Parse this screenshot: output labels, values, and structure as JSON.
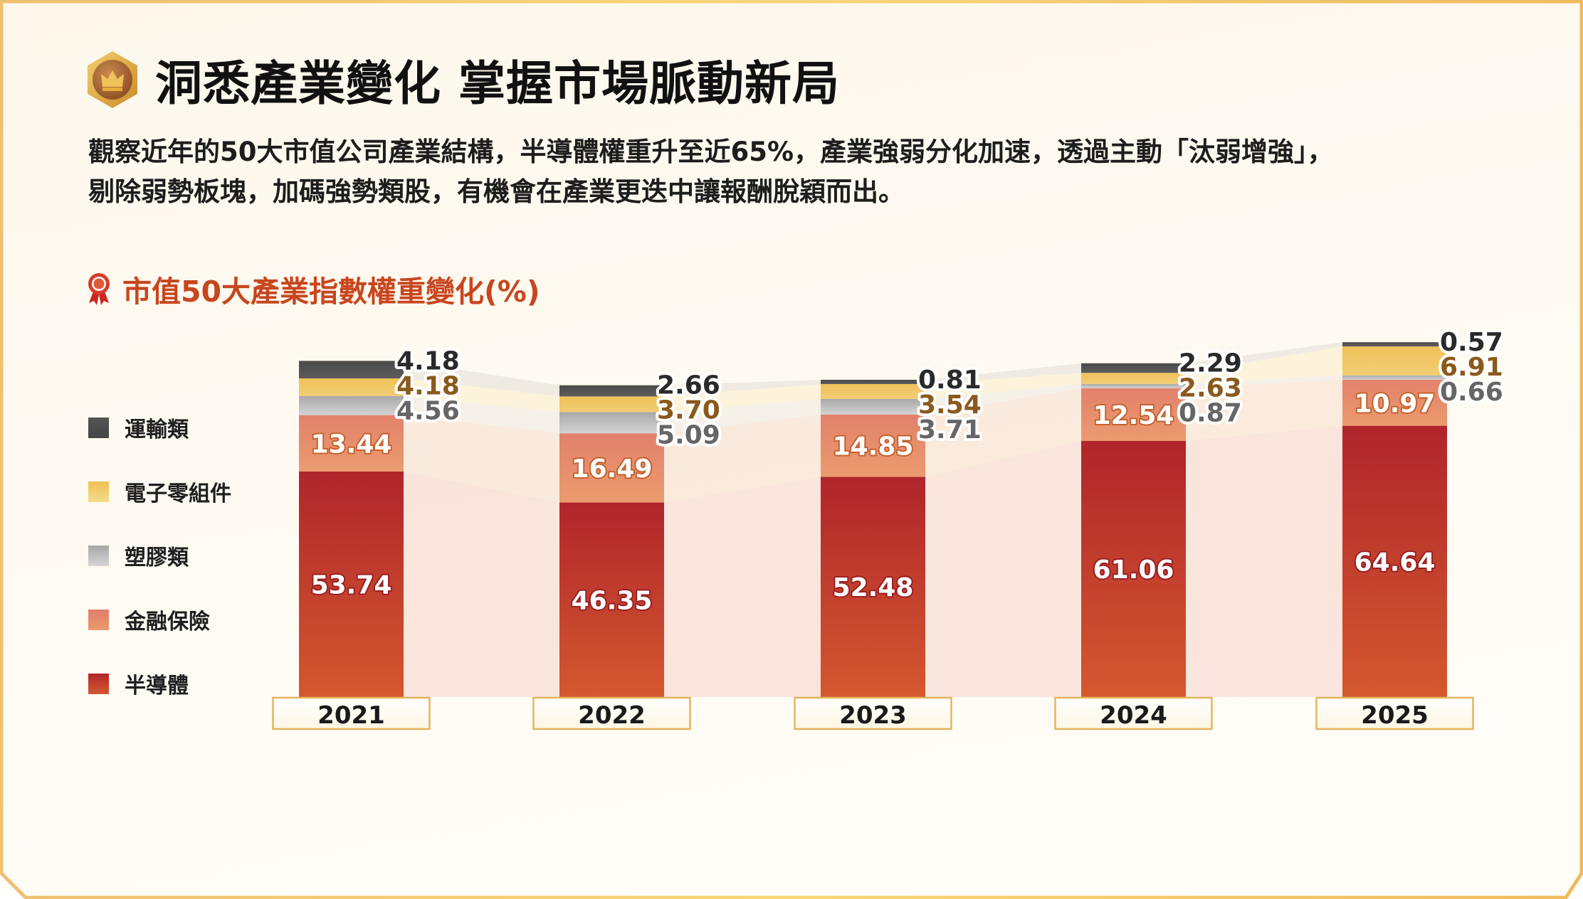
{
  "header": {
    "title": "洞悉產業變化  掌握市場脈動新局",
    "badge_icon": "crown-badge-icon"
  },
  "description": {
    "line1": "觀察近年的50大市值公司產業結構，半導體權重升至近65%，產業強弱分化加速，透過主動「汰弱增強」，",
    "line2": "剔除弱勢板塊，加碼強勢類股，有機會在產業更迭中讓報酬脫穎而出。"
  },
  "chart_section": {
    "title": "市值50大產業指數權重變化(%)",
    "title_icon": "award-ribbon-icon",
    "title_color": "#c8461e"
  },
  "legend": [
    {
      "label": "運輸類",
      "color": "#4d4d4d"
    },
    {
      "label": "電子零組件",
      "color": "#efc35e"
    },
    {
      "label": "塑膠類",
      "color": "#b3b3b3"
    },
    {
      "label": "金融保險",
      "color": "#e58a6e"
    },
    {
      "label": "半導體",
      "color": "#b5282a"
    }
  ],
  "chart_data": {
    "type": "bar",
    "stacked": true,
    "title": "市值50大產業指數權重變化(%)",
    "xlabel": "",
    "ylabel": "%",
    "categories": [
      "2021",
      "2022",
      "2023",
      "2024",
      "2025"
    ],
    "series": [
      {
        "name": "半導體",
        "color": "#b5282a",
        "values": [
          53.74,
          46.35,
          52.48,
          61.06,
          64.64
        ]
      },
      {
        "name": "金融保險",
        "color": "#e58a6e",
        "values": [
          13.44,
          16.49,
          14.85,
          12.54,
          10.97
        ]
      },
      {
        "name": "塑膠類",
        "color": "#b3b3b3",
        "values": [
          4.56,
          5.09,
          3.71,
          0.87,
          0.66
        ]
      },
      {
        "name": "電子零組件",
        "color": "#efc35e",
        "values": [
          4.18,
          3.7,
          3.54,
          2.63,
          6.91
        ]
      },
      {
        "name": "運輸類",
        "color": "#4d4d4d",
        "values": [
          4.18,
          2.66,
          0.81,
          2.29,
          0.57
        ]
      }
    ],
    "legend_position": "left",
    "grid": false,
    "ylim": [
      0,
      85
    ]
  }
}
